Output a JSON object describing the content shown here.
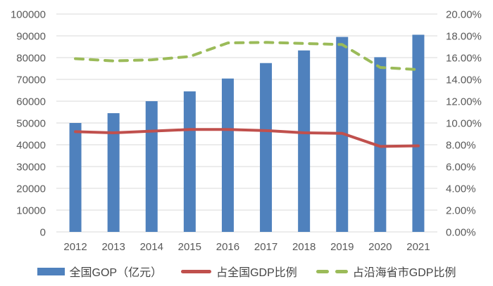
{
  "chart_data": {
    "type": "combo",
    "title": "",
    "categories": [
      "2012",
      "2013",
      "2014",
      "2015",
      "2016",
      "2017",
      "2018",
      "2019",
      "2020",
      "2021"
    ],
    "series": [
      {
        "name": "全国GOP（亿元）",
        "type": "bar",
        "axis": "left",
        "color": "#4F81BD",
        "values": [
          50000,
          54500,
          60000,
          64500,
          70400,
          77500,
          83300,
          89500,
          80200,
          90500
        ]
      },
      {
        "name": "占全国GDP比例",
        "type": "line",
        "style": "solid",
        "axis": "right",
        "color": "#C0504D",
        "values": [
          9.2,
          9.1,
          9.25,
          9.4,
          9.4,
          9.3,
          9.1,
          9.05,
          7.85,
          7.9
        ]
      },
      {
        "name": "占沿海省市GDP比例",
        "type": "line",
        "style": "dashed",
        "axis": "right",
        "color": "#9BBB59",
        "values": [
          15.9,
          15.7,
          15.8,
          16.1,
          17.35,
          17.4,
          17.3,
          17.2,
          15.1,
          14.9
        ]
      }
    ],
    "left_axis": {
      "min": 0,
      "max": 100000,
      "step": 10000,
      "tick_labels": [
        "0",
        "10000",
        "20000",
        "30000",
        "40000",
        "50000",
        "60000",
        "70000",
        "80000",
        "90000",
        "100000"
      ]
    },
    "right_axis": {
      "min": 0,
      "max": 20,
      "step": 2,
      "tick_labels": [
        "0.00%",
        "2.00%",
        "4.00%",
        "6.00%",
        "8.00%",
        "10.00%",
        "12.00%",
        "14.00%",
        "16.00%",
        "18.00%",
        "20.00%"
      ]
    },
    "grid": true,
    "legend_position": "bottom"
  },
  "colors": {
    "grid_line": "#D9D9D9",
    "tick_text": "#595959",
    "legend_text": "#444444",
    "background": "#FFFFFF"
  }
}
